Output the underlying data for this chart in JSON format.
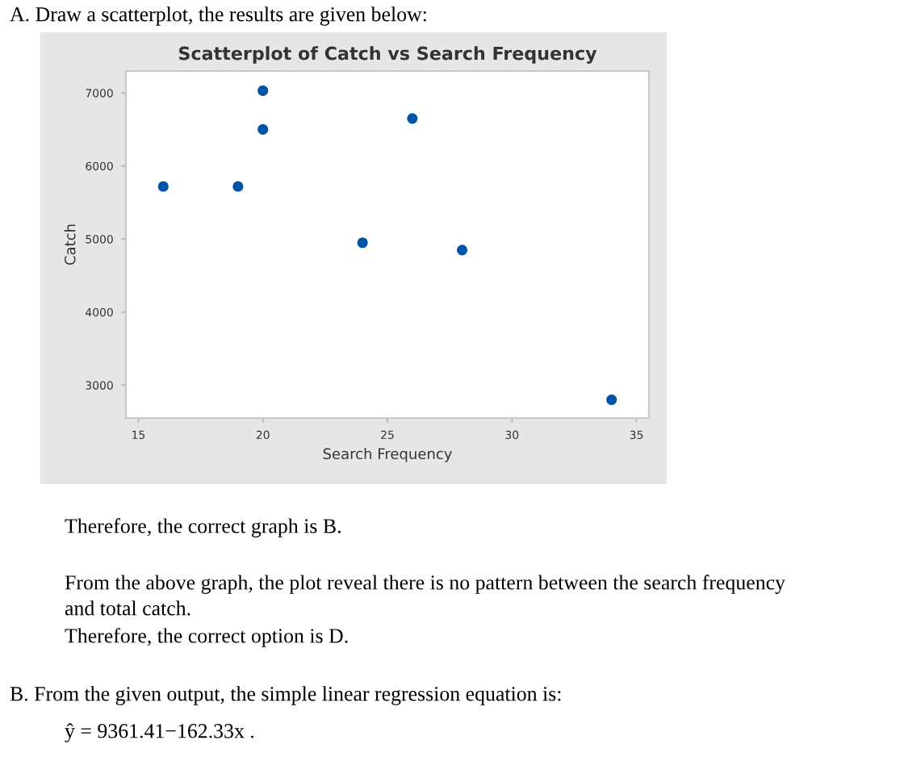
{
  "chart_data": {
    "type": "scatter",
    "title": "Scatterplot of Catch vs Search Frequency",
    "xlabel": "Search Frequency",
    "ylabel": "Catch",
    "x": [
      16,
      19,
      20,
      20,
      24,
      26,
      28,
      34
    ],
    "series": [
      {
        "color": "#0054a6",
        "values": [
          5720,
          5720,
          7030,
          6500,
          4950,
          6650,
          4850,
          2800
        ]
      }
    ],
    "xlim": [
      14.5,
      35.5
    ],
    "xticks": [
      15,
      20,
      25,
      30,
      35
    ],
    "ylim": [
      2550,
      7300
    ],
    "yticks": [
      3000,
      4000,
      5000,
      6000,
      7000
    ],
    "marker": "circle",
    "annotations": [
      "A. Draw a scatterplot, the results are given below:",
      "Therefore, the correct graph is B.",
      "From the above graph, the plot reveal there is no pattern between the search frequency",
      "and total catch.",
      "Therefore, the correct option is D.",
      "B. From the given output, the simple linear regression equation is:",
      "ŷ = 9361.41−162.33x ."
    ]
  }
}
